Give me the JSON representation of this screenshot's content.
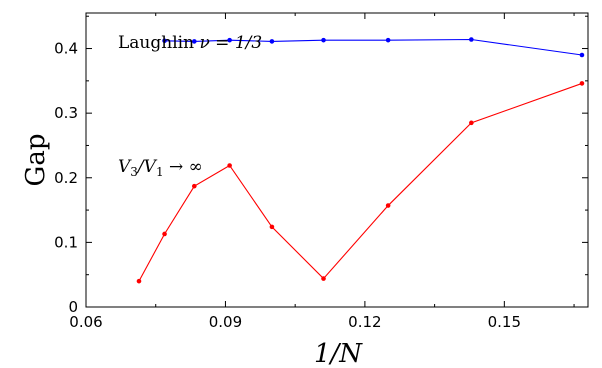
{
  "chart_data": {
    "type": "line",
    "xlabel": "1/N",
    "ylabel": "Gap",
    "xlim": [
      0.06,
      0.168
    ],
    "ylim": [
      0,
      0.455
    ],
    "x_ticks": [
      0.06,
      0.09,
      0.12,
      0.15
    ],
    "x_tick_labels": [
      "0.06",
      "0.09",
      "0.12",
      "0.15"
    ],
    "y_ticks": [
      0,
      0.1,
      0.2,
      0.3,
      0.4
    ],
    "y_tick_labels": [
      "0",
      "0.1",
      "0.2",
      "0.3",
      "0.4"
    ],
    "grid": false,
    "legend": "none",
    "series": [
      {
        "name": "Laughlin ν = 1/3",
        "color": "#0000ff",
        "x": [
          0.0769,
          0.0833,
          0.0909,
          0.1,
          0.1111,
          0.125,
          0.1429,
          0.1667
        ],
        "y": [
          0.412,
          0.411,
          0.413,
          0.411,
          0.413,
          0.413,
          0.414,
          0.39
        ]
      },
      {
        "name": "V3/V1 → ∞",
        "color": "#ff0000",
        "x": [
          0.0714,
          0.0769,
          0.0833,
          0.0909,
          0.1,
          0.1111,
          0.125,
          0.1429,
          0.1667
        ],
        "y": [
          0.04,
          0.113,
          0.187,
          0.219,
          0.124,
          0.044,
          0.157,
          0.285,
          0.346
        ]
      }
    ],
    "annotations": {
      "laughlin_prefix": "Laughlin ",
      "laughlin_math": "ν = 1/3",
      "v_ratio_a": "V",
      "v_ratio_a_sub": "3",
      "v_ratio_sep": "/V",
      "v_ratio_b_sub": "1",
      "v_ratio_arrow": " → ∞"
    }
  }
}
